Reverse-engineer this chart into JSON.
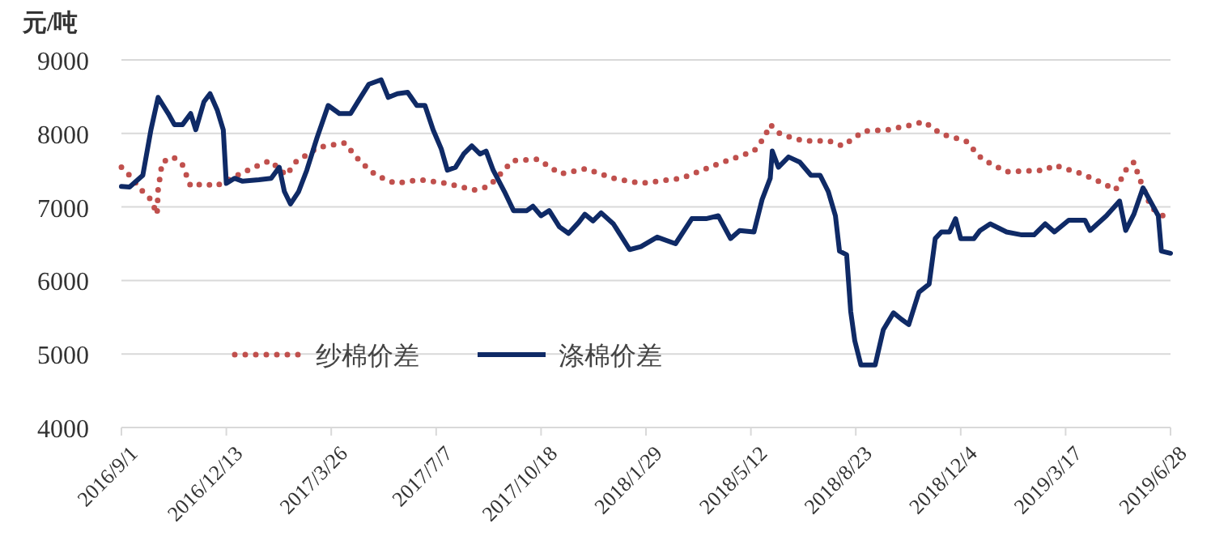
{
  "chart_data": {
    "type": "line",
    "ylabel": "元/吨",
    "ylim": [
      4000,
      9000
    ],
    "yticks": [
      4000,
      5000,
      6000,
      7000,
      8000,
      9000
    ],
    "xlim": [
      "2016-09-01",
      "2019-06-28"
    ],
    "xticks": [
      {
        "value": "2016-09-01",
        "label": "2016/9/1"
      },
      {
        "value": "2016-12-13",
        "label": "2016/12/13"
      },
      {
        "value": "2017-03-26",
        "label": "2017/3/26"
      },
      {
        "value": "2017-07-07",
        "label": "2017/7/7"
      },
      {
        "value": "2017-10-18",
        "label": "2017/10/18"
      },
      {
        "value": "2018-01-29",
        "label": "2018/1/29"
      },
      {
        "value": "2018-05-12",
        "label": "2018/5/12"
      },
      {
        "value": "2018-08-23",
        "label": "2018/8/23"
      },
      {
        "value": "2018-12-04",
        "label": "2018/12/4"
      },
      {
        "value": "2019-03-17",
        "label": "2019/3/17"
      },
      {
        "value": "2019-06-28",
        "label": "2019/6/28"
      }
    ],
    "grid": "y",
    "legend": "bottom left",
    "marker": "none",
    "series": [
      {
        "name": "纱棉价差",
        "color": "#c0504d",
        "line_style": "dotted",
        "x": [
          "2016-09-01",
          "2016-09-09",
          "2016-09-22",
          "2016-09-30",
          "2016-10-06",
          "2016-10-07",
          "2016-10-11",
          "2016-10-22",
          "2016-10-31",
          "2016-11-08",
          "2016-11-22",
          "2016-12-02",
          "2016-12-18",
          "2017-01-09",
          "2017-01-25",
          "2017-02-10",
          "2017-02-19",
          "2017-03-13",
          "2017-04-08",
          "2017-04-24",
          "2017-05-09",
          "2017-05-28",
          "2017-06-21",
          "2017-07-18",
          "2017-08-13",
          "2017-08-28",
          "2017-09-20",
          "2017-10-15",
          "2017-11-06",
          "2017-12-01",
          "2017-12-28",
          "2018-01-24",
          "2018-03-05",
          "2018-04-07",
          "2018-05-15",
          "2018-05-25",
          "2018-05-31",
          "2018-06-10",
          "2018-07-02",
          "2018-07-27",
          "2018-08-10",
          "2018-08-31",
          "2018-09-24",
          "2018-10-18",
          "2018-10-29",
          "2018-11-15",
          "2018-12-09",
          "2018-12-25",
          "2019-01-18",
          "2019-02-25",
          "2019-03-06",
          "2019-04-02",
          "2019-04-23",
          "2019-05-05",
          "2019-05-15",
          "2019-05-23",
          "2019-05-28",
          "2019-06-09",
          "2019-06-25"
        ],
        "values": [
          7540,
          7430,
          7210,
          7100,
          6900,
          7230,
          7610,
          7680,
          7570,
          7280,
          7320,
          7280,
          7390,
          7540,
          7630,
          7430,
          7610,
          7810,
          7870,
          7610,
          7430,
          7320,
          7370,
          7320,
          7230,
          7280,
          7630,
          7650,
          7450,
          7520,
          7390,
          7320,
          7390,
          7570,
          7760,
          7940,
          8120,
          7990,
          7900,
          7900,
          7830,
          8030,
          8050,
          8120,
          8160,
          7990,
          7900,
          7650,
          7480,
          7500,
          7570,
          7450,
          7320,
          7230,
          7500,
          7610,
          7410,
          6990,
          6840
        ]
      },
      {
        "name": "涤棉价差",
        "color": "#0f2a66",
        "line_style": "solid",
        "x": [
          "2016-09-01",
          "2016-09-09",
          "2016-09-22",
          "2016-09-30",
          "2016-10-07",
          "2016-10-17",
          "2016-10-23",
          "2016-10-31",
          "2016-11-08",
          "2016-11-13",
          "2016-11-21",
          "2016-11-27",
          "2016-12-04",
          "2016-12-10",
          "2016-12-13",
          "2016-12-21",
          "2016-12-29",
          "2017-01-14",
          "2017-01-26",
          "2017-02-03",
          "2017-02-08",
          "2017-02-14",
          "2017-02-22",
          "2017-03-02",
          "2017-03-12",
          "2017-03-23",
          "2017-04-03",
          "2017-04-14",
          "2017-04-22",
          "2017-05-02",
          "2017-05-14",
          "2017-05-21",
          "2017-05-30",
          "2017-06-09",
          "2017-06-18",
          "2017-06-26",
          "2017-07-04",
          "2017-07-12",
          "2017-07-18",
          "2017-07-26",
          "2017-08-03",
          "2017-08-11",
          "2017-08-19",
          "2017-08-25",
          "2017-09-01",
          "2017-09-12",
          "2017-09-21",
          "2017-10-04",
          "2017-10-10",
          "2017-10-18",
          "2017-10-26",
          "2017-11-05",
          "2017-11-14",
          "2017-11-24",
          "2017-11-30",
          "2017-12-08",
          "2017-12-16",
          "2017-12-28",
          "2018-01-13",
          "2018-01-24",
          "2018-02-09",
          "2018-02-27",
          "2018-03-15",
          "2018-03-29",
          "2018-04-10",
          "2018-04-22",
          "2018-05-01",
          "2018-05-15",
          "2018-05-23",
          "2018-05-31",
          "2018-06-02",
          "2018-06-08",
          "2018-06-18",
          "2018-06-29",
          "2018-07-10",
          "2018-07-19",
          "2018-07-27",
          "2018-08-03",
          "2018-08-07",
          "2018-08-14",
          "2018-08-18",
          "2018-08-22",
          "2018-08-28",
          "2018-09-11",
          "2018-09-19",
          "2018-09-29",
          "2018-10-07",
          "2018-10-14",
          "2018-10-24",
          "2018-11-03",
          "2018-11-09",
          "2018-11-15",
          "2018-11-23",
          "2018-11-29",
          "2018-12-04",
          "2018-12-17",
          "2018-12-23",
          "2019-01-02",
          "2019-01-18",
          "2019-02-02",
          "2019-02-14",
          "2019-02-25",
          "2019-03-06",
          "2019-03-20",
          "2019-04-05",
          "2019-04-10",
          "2019-04-26",
          "2019-05-09",
          "2019-05-15",
          "2019-05-23",
          "2019-06-01",
          "2019-06-16",
          "2019-06-19",
          "2019-06-28"
        ],
        "values": [
          7280,
          7270,
          7430,
          8050,
          8490,
          8270,
          8120,
          8120,
          8270,
          8050,
          8430,
          8540,
          8320,
          8050,
          7320,
          7390,
          7350,
          7370,
          7390,
          7540,
          7210,
          7040,
          7210,
          7500,
          7940,
          8380,
          8270,
          8270,
          8450,
          8670,
          8730,
          8490,
          8540,
          8560,
          8380,
          8380,
          8050,
          7790,
          7500,
          7540,
          7720,
          7830,
          7720,
          7760,
          7500,
          7210,
          6950,
          6950,
          7010,
          6880,
          6950,
          6730,
          6640,
          6790,
          6900,
          6810,
          6920,
          6770,
          6420,
          6460,
          6590,
          6500,
          6840,
          6840,
          6880,
          6570,
          6680,
          6660,
          7100,
          7390,
          7760,
          7540,
          7680,
          7610,
          7430,
          7430,
          7210,
          6880,
          6400,
          6350,
          5580,
          5180,
          4850,
          4850,
          5330,
          5560,
          5470,
          5400,
          5840,
          5950,
          6570,
          6660,
          6660,
          6840,
          6570,
          6570,
          6680,
          6770,
          6660,
          6620,
          6620,
          6770,
          6660,
          6820,
          6820,
          6680,
          6880,
          7080,
          6680,
          6900,
          7260,
          6880,
          6400,
          6370
        ]
      }
    ]
  }
}
